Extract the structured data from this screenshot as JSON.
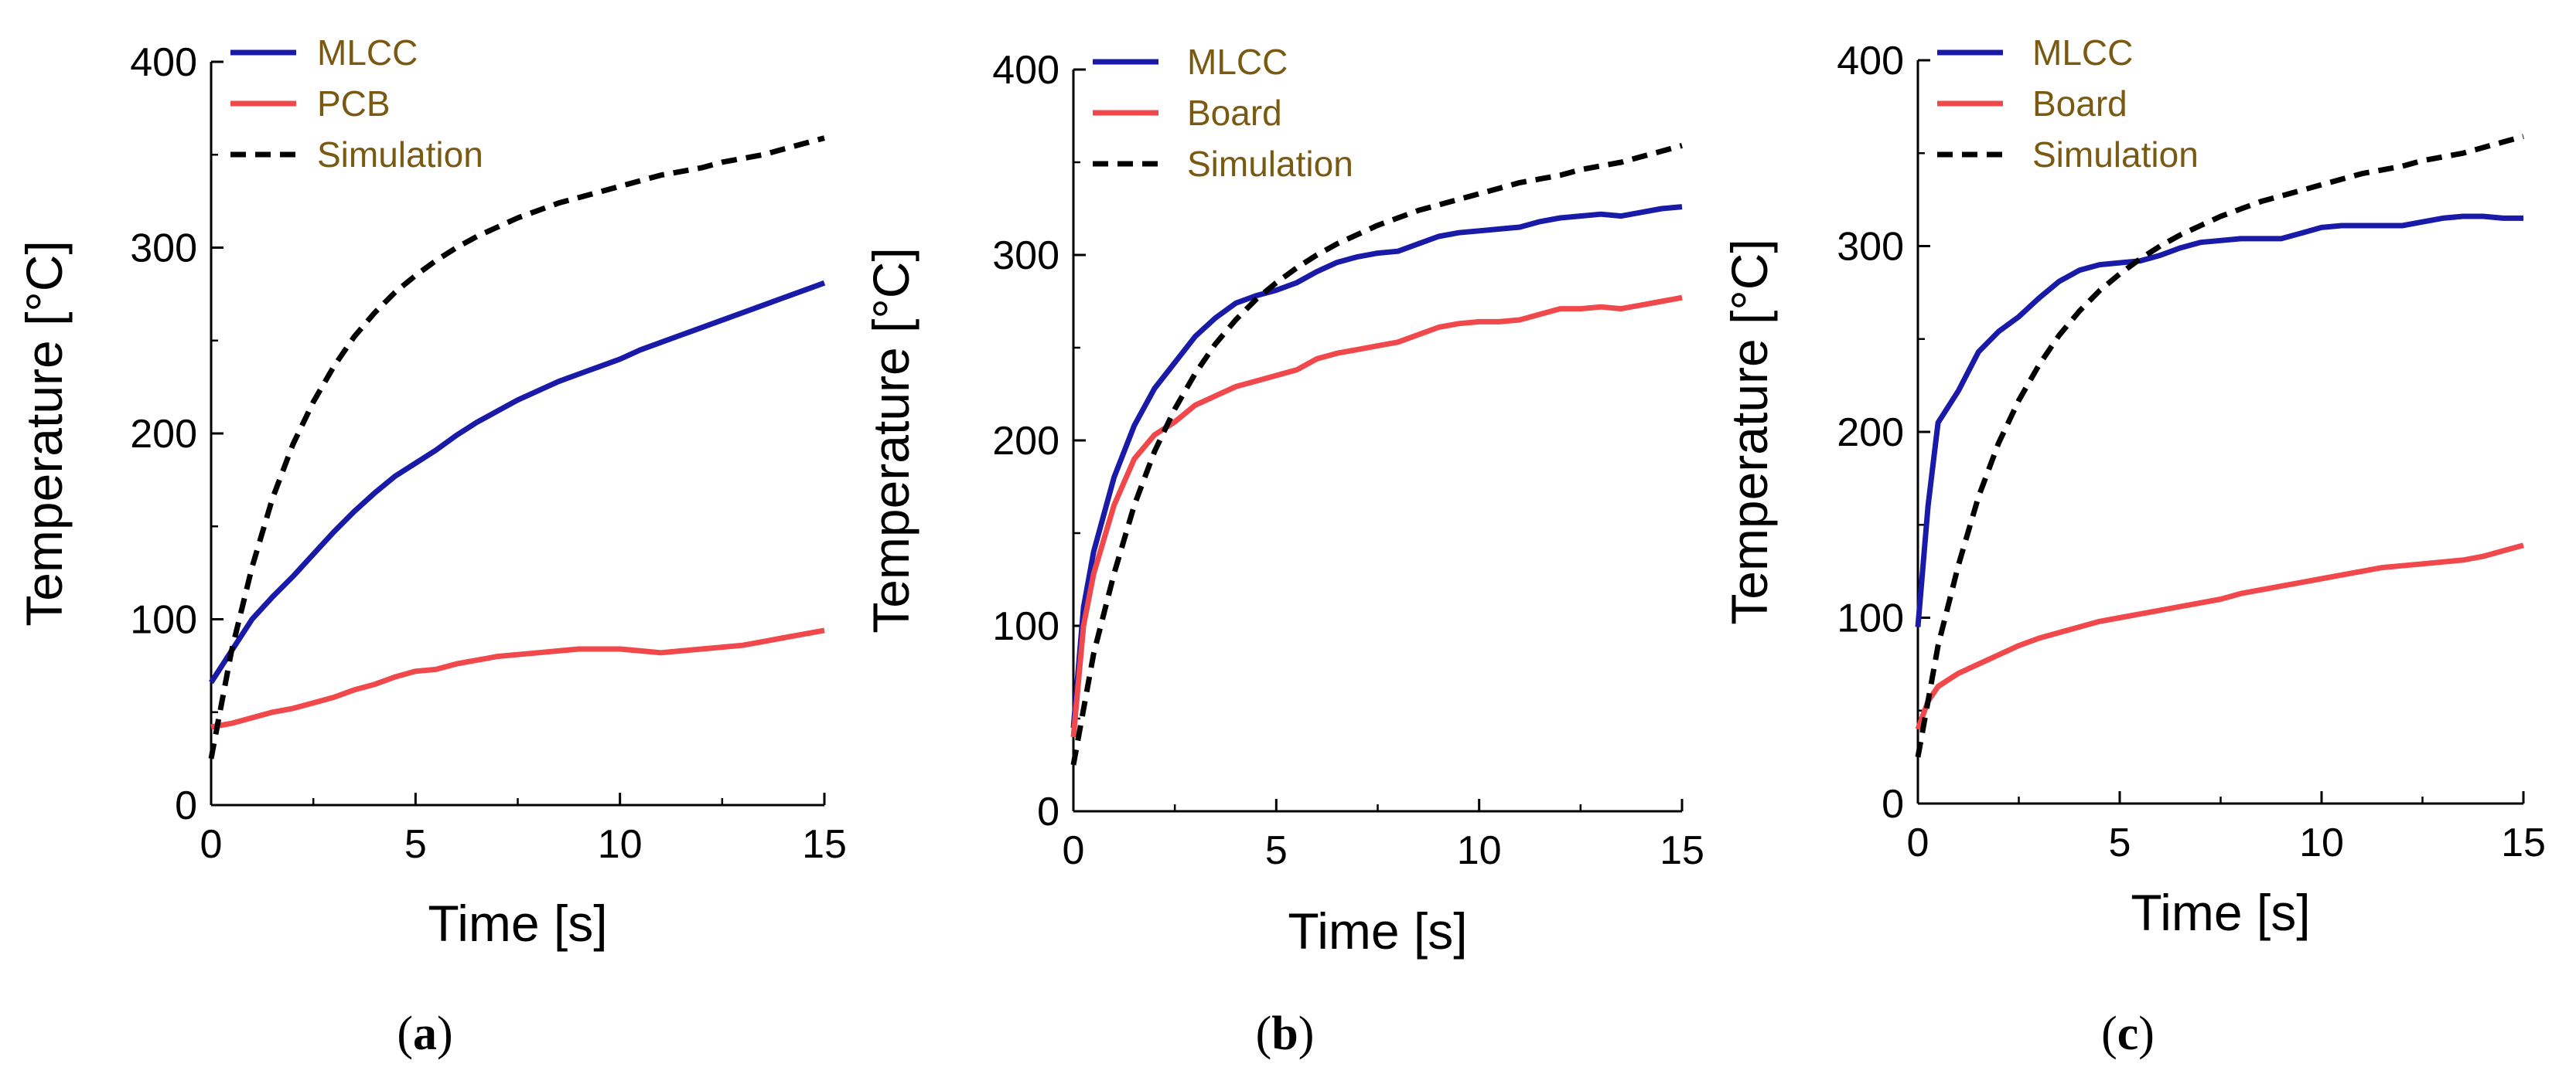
{
  "chart_data": [
    {
      "type": "line",
      "panel_label": "(a)",
      "panel_letter": "a",
      "xlabel": "Time [s]",
      "ylabel": "Temperature [°C]",
      "xlim": [
        0,
        15
      ],
      "ylim": [
        0,
        400
      ],
      "xticks": [
        0,
        5,
        10,
        15
      ],
      "yticks": [
        0,
        100,
        200,
        300,
        400
      ],
      "grid": false,
      "legend": "top-left",
      "series": [
        {
          "name": "MLCC",
          "color": "#1a1aa8",
          "dash": "solid",
          "x": [
            0,
            0.5,
            1,
            1.5,
            2,
            2.5,
            3,
            3.5,
            4,
            4.5,
            5,
            5.5,
            6,
            6.5,
            7,
            7.5,
            8,
            8.5,
            9,
            9.5,
            10,
            10.5,
            11,
            11.5,
            12,
            12.5,
            13,
            13.5,
            14,
            14.5,
            15
          ],
          "y": [
            66,
            83,
            100,
            112,
            123,
            135,
            147,
            158,
            168,
            177,
            184,
            191,
            199,
            206,
            212,
            218,
            223,
            228,
            232,
            236,
            240,
            245,
            249,
            253,
            257,
            261,
            265,
            269,
            273,
            277,
            281
          ]
        },
        {
          "name": "PCB",
          "color": "#f0484b",
          "dash": "solid",
          "x": [
            0,
            0.5,
            1,
            1.5,
            2,
            2.5,
            3,
            3.5,
            4,
            4.5,
            5,
            5.5,
            6,
            6.5,
            7,
            7.5,
            8,
            8.5,
            9,
            9.5,
            10,
            10.5,
            11,
            11.5,
            12,
            12.5,
            13,
            13.5,
            14,
            14.5,
            15
          ],
          "y": [
            42,
            44,
            47,
            50,
            52,
            55,
            58,
            62,
            65,
            69,
            72,
            73,
            76,
            78,
            80,
            81,
            82,
            83,
            84,
            84,
            84,
            83,
            82,
            83,
            84,
            85,
            86,
            88,
            90,
            92,
            94
          ]
        },
        {
          "name": "Simulation",
          "color": "#000000",
          "dash": "dashed",
          "x": [
            0,
            0.5,
            1,
            1.5,
            2,
            2.5,
            3,
            3.5,
            4,
            4.5,
            5,
            5.5,
            6,
            6.5,
            7,
            7.5,
            8,
            8.5,
            9,
            9.5,
            10,
            10.5,
            11,
            11.5,
            12,
            12.5,
            13,
            13.5,
            14,
            14.5,
            15
          ],
          "y": [
            25,
            83,
            128,
            165,
            194,
            217,
            236,
            252,
            265,
            276,
            285,
            293,
            300,
            306,
            311,
            316,
            320,
            324,
            327,
            330,
            333,
            336,
            339,
            341,
            343,
            346,
            348,
            350,
            353,
            356,
            359
          ]
        }
      ]
    },
    {
      "type": "line",
      "panel_label": "(b)",
      "panel_letter": "b",
      "xlabel": "Time [s]",
      "ylabel": "Temperature [°C]",
      "xlim": [
        0,
        15
      ],
      "ylim": [
        0,
        400
      ],
      "xticks": [
        0,
        5,
        10,
        15
      ],
      "yticks": [
        0,
        100,
        200,
        300,
        400
      ],
      "grid": false,
      "legend": "top-left",
      "series": [
        {
          "name": "MLCC",
          "color": "#1a1aa8",
          "dash": "solid",
          "x": [
            0,
            0.25,
            0.5,
            1,
            1.5,
            2,
            2.5,
            3,
            3.5,
            4,
            4.5,
            5,
            5.5,
            6,
            6.5,
            7,
            7.5,
            8,
            8.5,
            9,
            9.5,
            10,
            10.5,
            11,
            11.5,
            12,
            12.5,
            13,
            13.5,
            14,
            14.5,
            15
          ],
          "y": [
            45,
            110,
            140,
            180,
            208,
            228,
            242,
            256,
            266,
            274,
            278,
            281,
            285,
            291,
            296,
            299,
            301,
            302,
            306,
            310,
            312,
            313,
            314,
            315,
            318,
            320,
            321,
            322,
            321,
            323,
            325,
            326
          ]
        },
        {
          "name": "Board",
          "color": "#f0484b",
          "dash": "solid",
          "x": [
            0,
            0.25,
            0.5,
            1,
            1.5,
            2,
            2.5,
            3,
            3.5,
            4,
            4.5,
            5,
            5.5,
            6,
            6.5,
            7,
            7.5,
            8,
            8.5,
            9,
            9.5,
            10,
            10.5,
            11,
            11.5,
            12,
            12.5,
            13,
            13.5,
            14,
            14.5,
            15
          ],
          "y": [
            40,
            100,
            128,
            165,
            190,
            203,
            210,
            219,
            224,
            229,
            232,
            235,
            238,
            244,
            247,
            249,
            251,
            253,
            257,
            261,
            263,
            264,
            264,
            265,
            268,
            271,
            271,
            272,
            271,
            273,
            275,
            277
          ]
        },
        {
          "name": "Simulation",
          "color": "#000000",
          "dash": "dashed",
          "x": [
            0,
            0.25,
            0.5,
            1,
            1.5,
            2,
            2.5,
            3,
            3.5,
            4,
            4.5,
            5,
            5.5,
            6,
            6.5,
            7,
            7.5,
            8,
            8.5,
            9,
            9.5,
            10,
            10.5,
            11,
            11.5,
            12,
            12.5,
            13,
            13.5,
            14,
            14.5,
            15
          ],
          "y": [
            25,
            55,
            85,
            128,
            165,
            194,
            217,
            236,
            252,
            265,
            276,
            285,
            293,
            300,
            306,
            311,
            316,
            320,
            324,
            327,
            330,
            333,
            336,
            339,
            341,
            343,
            346,
            348,
            350,
            353,
            356,
            359
          ]
        }
      ]
    },
    {
      "type": "line",
      "panel_label": "(c)",
      "panel_letter": "c",
      "xlabel": "Time [s]",
      "ylabel": "Temperature [°C]",
      "xlim": [
        0,
        15
      ],
      "ylim": [
        0,
        400
      ],
      "xticks": [
        0,
        5,
        10,
        15
      ],
      "yticks": [
        0,
        100,
        200,
        300,
        400
      ],
      "grid": false,
      "legend": "top-left",
      "series": [
        {
          "name": "MLCC",
          "color": "#1a1aa8",
          "dash": "solid",
          "x": [
            0,
            0.25,
            0.5,
            1,
            1.5,
            2,
            2.5,
            3,
            3.5,
            4,
            4.5,
            5,
            5.5,
            6,
            6.5,
            7,
            7.5,
            8,
            8.5,
            9,
            9.5,
            10,
            10.5,
            11,
            11.5,
            12,
            12.5,
            13,
            13.5,
            14,
            14.5,
            15
          ],
          "y": [
            95,
            160,
            205,
            222,
            243,
            254,
            262,
            272,
            281,
            287,
            290,
            291,
            292,
            295,
            299,
            302,
            303,
            304,
            304,
            304,
            307,
            310,
            311,
            311,
            311,
            311,
            313,
            315,
            316,
            316,
            315,
            315
          ]
        },
        {
          "name": "Board",
          "color": "#f0484b",
          "dash": "solid",
          "x": [
            0,
            0.25,
            0.5,
            1,
            1.5,
            2,
            2.5,
            3,
            3.5,
            4,
            4.5,
            5,
            5.5,
            6,
            6.5,
            7,
            7.5,
            8,
            8.5,
            9,
            9.5,
            10,
            10.5,
            11,
            11.5,
            12,
            12.5,
            13,
            13.5,
            14,
            14.5,
            15
          ],
          "y": [
            40,
            55,
            63,
            70,
            75,
            80,
            85,
            89,
            92,
            95,
            98,
            100,
            102,
            104,
            106,
            108,
            110,
            113,
            115,
            117,
            119,
            121,
            123,
            125,
            127,
            128,
            129,
            130,
            131,
            133,
            136,
            139
          ]
        },
        {
          "name": "Simulation",
          "color": "#000000",
          "dash": "dashed",
          "x": [
            0,
            0.25,
            0.5,
            1,
            1.5,
            2,
            2.5,
            3,
            3.5,
            4,
            4.5,
            5,
            5.5,
            6,
            6.5,
            7,
            7.5,
            8,
            8.5,
            9,
            9.5,
            10,
            10.5,
            11,
            11.5,
            12,
            12.5,
            13,
            13.5,
            14,
            14.5,
            15
          ],
          "y": [
            25,
            55,
            85,
            128,
            165,
            194,
            217,
            236,
            252,
            265,
            276,
            285,
            293,
            300,
            306,
            311,
            316,
            320,
            324,
            327,
            330,
            333,
            336,
            339,
            341,
            343,
            346,
            348,
            350,
            353,
            356,
            359
          ]
        }
      ]
    }
  ]
}
